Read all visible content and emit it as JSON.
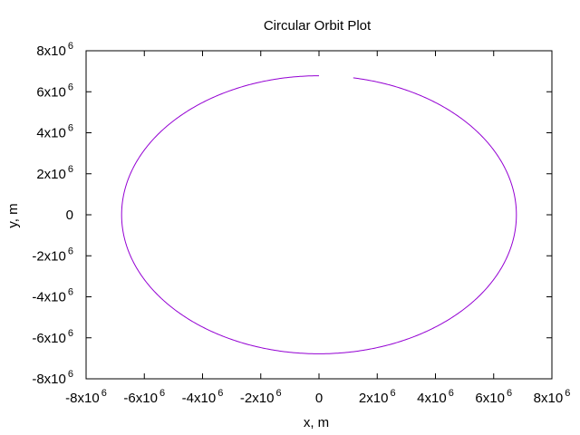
{
  "chart_data": {
    "type": "line",
    "title": "Circular Orbit Plot",
    "xlabel": "x, m",
    "ylabel": "y, m",
    "xlim": [
      -8000000,
      8000000
    ],
    "ylim": [
      -8000000,
      8000000
    ],
    "grid": false,
    "legend": "none",
    "line_color": "#9400d3",
    "x_ticks": [
      {
        "value": -8000000,
        "base": "-8x10",
        "exp": "6"
      },
      {
        "value": -6000000,
        "base": "-6x10",
        "exp": "6"
      },
      {
        "value": -4000000,
        "base": "-4x10",
        "exp": "6"
      },
      {
        "value": -2000000,
        "base": "-2x10",
        "exp": "6"
      },
      {
        "value": 0,
        "base": "0",
        "exp": ""
      },
      {
        "value": 2000000,
        "base": "2x10",
        "exp": "6"
      },
      {
        "value": 4000000,
        "base": "4x10",
        "exp": "6"
      },
      {
        "value": 6000000,
        "base": "6x10",
        "exp": "6"
      },
      {
        "value": 8000000,
        "base": "8x10",
        "exp": "6"
      }
    ],
    "y_ticks": [
      {
        "value": 8000000,
        "base": "8x10",
        "exp": "6"
      },
      {
        "value": 6000000,
        "base": "6x10",
        "exp": "6"
      },
      {
        "value": 4000000,
        "base": "4x10",
        "exp": "6"
      },
      {
        "value": 2000000,
        "base": "2x10",
        "exp": "6"
      },
      {
        "value": 0,
        "base": "0",
        "exp": ""
      },
      {
        "value": -2000000,
        "base": "-2x10",
        "exp": "6"
      },
      {
        "value": -4000000,
        "base": "-4x10",
        "exp": "6"
      },
      {
        "value": -6000000,
        "base": "-6x10",
        "exp": "6"
      },
      {
        "value": -8000000,
        "base": "-8x10",
        "exp": "6"
      }
    ],
    "series": [
      {
        "shape": "circle",
        "radius": 6780000,
        "center": [
          0,
          0
        ],
        "start_angle_deg": 90,
        "end_angle_deg": 440,
        "direction": "counterclockwise"
      }
    ]
  }
}
